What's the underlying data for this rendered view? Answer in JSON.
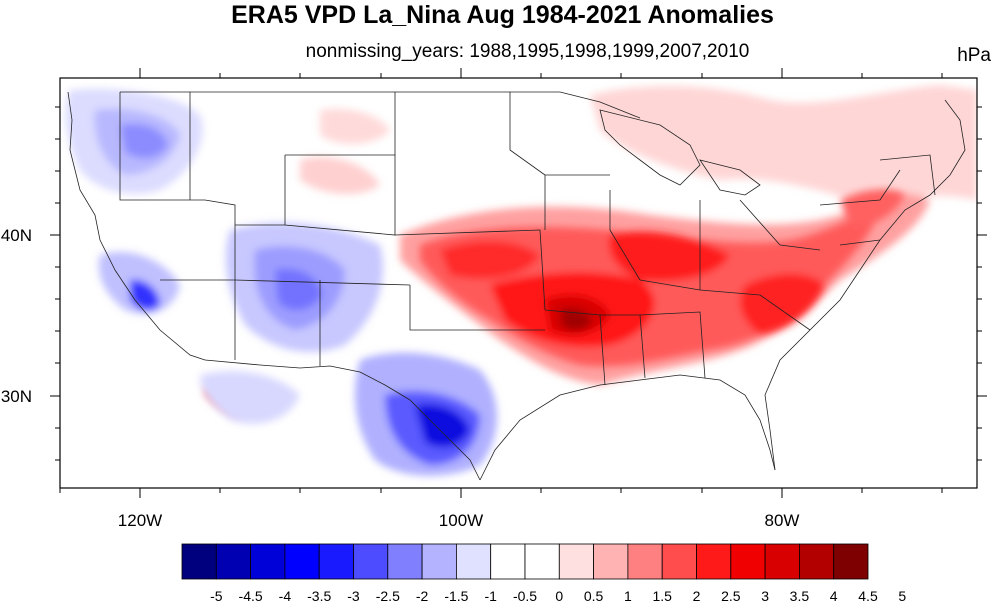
{
  "title": "ERA5 VPD La_Nina Aug 1984-2021 Anomalies",
  "subtitle": "nonmissing_years: 1988,1995,1998,1999,2007,2010",
  "units": "hPa",
  "map": {
    "lat_labels": [
      "40N",
      "30N"
    ],
    "lon_labels": [
      "120W",
      "100W",
      "80W"
    ]
  },
  "colorbar": {
    "colors": [
      "#00007f",
      "#0000b2",
      "#0000d8",
      "#0000ff",
      "#1a1aff",
      "#4d4dff",
      "#8080ff",
      "#b3b3ff",
      "#e0e0ff",
      "#ffffff",
      "#ffffff",
      "#ffe0e0",
      "#ffb3b3",
      "#ff8080",
      "#ff4d4d",
      "#ff1a1a",
      "#f00000",
      "#d80000",
      "#b20000",
      "#7f0000"
    ],
    "labels": [
      "-5",
      "-4.5",
      "-4",
      "-3.5",
      "-3",
      "-2.5",
      "-2",
      "-1.5",
      "-1",
      "-0.5",
      "0",
      "0.5",
      "1",
      "1.5",
      "2",
      "2.5",
      "3",
      "3.5",
      "4",
      "4.5",
      "5"
    ]
  },
  "anomaly_regions": [
    {
      "name": "central-plains-southeast-high",
      "level": 3.5
    },
    {
      "name": "arkansas-core-high",
      "level": 5
    },
    {
      "name": "east-coast-high",
      "level": 2
    },
    {
      "name": "great-lakes-northeast-positive",
      "level": 1
    },
    {
      "name": "texas-low",
      "level": -4
    },
    {
      "name": "four-corners-low",
      "level": -2
    },
    {
      "name": "pacific-northwest-low",
      "level": -1.5
    },
    {
      "name": "california-low",
      "level": -3
    }
  ]
}
